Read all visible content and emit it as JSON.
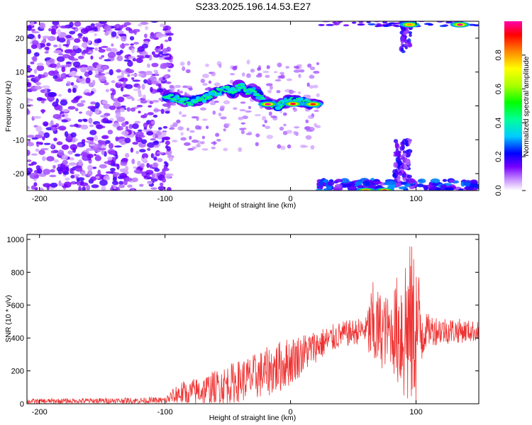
{
  "figure_title": "S233.2025.196.14.53.E27",
  "chart_data": [
    {
      "type": "heatmap",
      "xlabel": "Height of straight line (km)",
      "ylabel": "Frequency (Hz)",
      "xlim": [
        -210,
        150
      ],
      "ylim": [
        -25,
        25
      ],
      "xticks": [
        -200,
        -100,
        0,
        100
      ],
      "yticks": [
        -20,
        -10,
        0,
        10,
        20
      ],
      "colorbar": {
        "label": "Normalized spectral amplitude",
        "range": [
          0,
          1
        ],
        "ticks": [
          0.0,
          0.2,
          0.4,
          0.6,
          0.8
        ]
      },
      "ridge": [
        {
          "x": -100,
          "f": 3
        },
        {
          "x": -90,
          "f": 2
        },
        {
          "x": -80,
          "f": 1
        },
        {
          "x": -70,
          "f": 2
        },
        {
          "x": -60,
          "f": 4
        },
        {
          "x": -50,
          "f": 5
        },
        {
          "x": -45,
          "f": 4
        },
        {
          "x": -40,
          "f": 6
        },
        {
          "x": -35,
          "f": 4
        },
        {
          "x": -30,
          "f": 5
        },
        {
          "x": -25,
          "f": 3
        },
        {
          "x": -20,
          "f": 1
        },
        {
          "x": -10,
          "f": 0
        },
        {
          "x": 0,
          "f": 2
        },
        {
          "x": 10,
          "f": 1
        },
        {
          "x": 22,
          "f": 0.5
        }
      ],
      "peaks": [
        {
          "x": -18,
          "f": 0.5,
          "a": 1.0
        },
        {
          "x": 2,
          "f": 0.6,
          "a": 0.95
        },
        {
          "x": 18,
          "f": 0.5,
          "a": 0.9
        },
        {
          "x": 60,
          "f": -25,
          "a": 0.85
        },
        {
          "x": 75,
          "f": -25,
          "a": 0.95
        },
        {
          "x": 95,
          "f": 24,
          "a": 0.8
        },
        {
          "x": 135,
          "f": 24,
          "a": 1.0
        }
      ]
    },
    {
      "type": "line",
      "xlabel": "Height of straight line (km)",
      "ylabel": "SNR (10 * v/v)",
      "xlim": [
        -210,
        150
      ],
      "ylim": [
        0,
        1030
      ],
      "xticks": [
        -200,
        -100,
        0,
        100
      ],
      "yticks": [
        0,
        200,
        400,
        600,
        800,
        1000
      ],
      "color": "#ee3333",
      "envelope": [
        {
          "x": -210,
          "base": 15,
          "amp": 15
        },
        {
          "x": -100,
          "base": 20,
          "amp": 20
        },
        {
          "x": -90,
          "base": 60,
          "amp": 70
        },
        {
          "x": -70,
          "base": 80,
          "amp": 90
        },
        {
          "x": -50,
          "base": 120,
          "amp": 120
        },
        {
          "x": -30,
          "base": 160,
          "amp": 140
        },
        {
          "x": -10,
          "base": 220,
          "amp": 160
        },
        {
          "x": 0,
          "base": 260,
          "amp": 150
        },
        {
          "x": 20,
          "base": 350,
          "amp": 100
        },
        {
          "x": 40,
          "base": 420,
          "amp": 80
        },
        {
          "x": 60,
          "base": 450,
          "amp": 80
        },
        {
          "x": 65,
          "base": 450,
          "amp": 300
        },
        {
          "x": 70,
          "base": 450,
          "amp": 250
        },
        {
          "x": 80,
          "base": 440,
          "amp": 200
        },
        {
          "x": 92,
          "base": 460,
          "amp": 550
        },
        {
          "x": 100,
          "base": 460,
          "amp": 480
        },
        {
          "x": 108,
          "base": 450,
          "amp": 100
        },
        {
          "x": 150,
          "base": 440,
          "amp": 60
        }
      ]
    }
  ]
}
